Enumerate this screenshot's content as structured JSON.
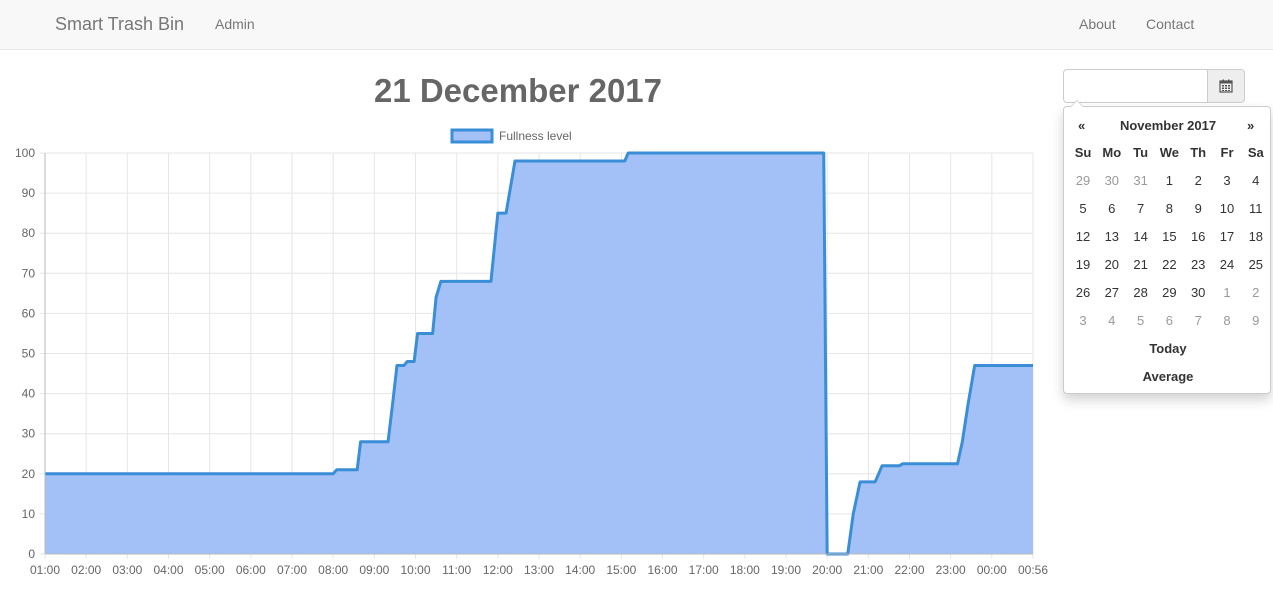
{
  "navbar": {
    "brand": "Smart Trash Bin",
    "admin_label": "Admin",
    "about_label": "About",
    "contact_label": "Contact"
  },
  "page_title": "21 December 2017",
  "datepicker": {
    "input_value": "",
    "icon": "calendar-icon",
    "prev_label": "«",
    "next_label": "»",
    "month_label": "November 2017",
    "dow": [
      "Su",
      "Mo",
      "Tu",
      "We",
      "Th",
      "Fr",
      "Sa"
    ],
    "weeks": [
      [
        {
          "d": "29",
          "m": true
        },
        {
          "d": "30",
          "m": true
        },
        {
          "d": "31",
          "m": true
        },
        {
          "d": "1"
        },
        {
          "d": "2"
        },
        {
          "d": "3"
        },
        {
          "d": "4"
        }
      ],
      [
        {
          "d": "5"
        },
        {
          "d": "6"
        },
        {
          "d": "7"
        },
        {
          "d": "8"
        },
        {
          "d": "9"
        },
        {
          "d": "10"
        },
        {
          "d": "11"
        }
      ],
      [
        {
          "d": "12"
        },
        {
          "d": "13"
        },
        {
          "d": "14"
        },
        {
          "d": "15"
        },
        {
          "d": "16"
        },
        {
          "d": "17"
        },
        {
          "d": "18"
        }
      ],
      [
        {
          "d": "19"
        },
        {
          "d": "20"
        },
        {
          "d": "21"
        },
        {
          "d": "22"
        },
        {
          "d": "23"
        },
        {
          "d": "24"
        },
        {
          "d": "25"
        }
      ],
      [
        {
          "d": "26"
        },
        {
          "d": "27"
        },
        {
          "d": "28"
        },
        {
          "d": "29"
        },
        {
          "d": "30"
        },
        {
          "d": "1",
          "m": true
        },
        {
          "d": "2",
          "m": true
        }
      ],
      [
        {
          "d": "3",
          "m": true
        },
        {
          "d": "4",
          "m": true
        },
        {
          "d": "5",
          "m": true
        },
        {
          "d": "6",
          "m": true
        },
        {
          "d": "7",
          "m": true
        },
        {
          "d": "8",
          "m": true
        },
        {
          "d": "9",
          "m": true
        }
      ]
    ],
    "today_label": "Today",
    "average_label": "Average"
  },
  "chart_data": {
    "type": "area",
    "title": "",
    "xlabel": "",
    "ylabel": "",
    "ylim": [
      0,
      100
    ],
    "y_ticks": [
      0,
      10,
      20,
      30,
      40,
      50,
      60,
      70,
      80,
      90,
      100
    ],
    "x_ticks": [
      "01:00",
      "02:00",
      "03:00",
      "04:00",
      "05:00",
      "06:00",
      "07:00",
      "08:00",
      "09:00",
      "10:00",
      "11:00",
      "12:00",
      "13:00",
      "14:00",
      "15:00",
      "16:00",
      "17:00",
      "18:00",
      "19:00",
      "20:00",
      "21:00",
      "22:00",
      "23:00",
      "00:00",
      "00:56"
    ],
    "grid": true,
    "legend_position": "top",
    "series": [
      {
        "name": "Fullness level",
        "fill_color": "#a3c1f6",
        "line_color": "#3a8ed6",
        "points": [
          {
            "x": "01:00",
            "y": 20
          },
          {
            "x": "08:00",
            "y": 20
          },
          {
            "x": "08:05",
            "y": 21
          },
          {
            "x": "08:35",
            "y": 21
          },
          {
            "x": "08:40",
            "y": 28
          },
          {
            "x": "09:20",
            "y": 28
          },
          {
            "x": "09:27",
            "y": 38
          },
          {
            "x": "09:33",
            "y": 47
          },
          {
            "x": "09:43",
            "y": 47
          },
          {
            "x": "09:48",
            "y": 48
          },
          {
            "x": "09:58",
            "y": 48
          },
          {
            "x": "10:03",
            "y": 55
          },
          {
            "x": "10:25",
            "y": 55
          },
          {
            "x": "10:30",
            "y": 64
          },
          {
            "x": "10:37",
            "y": 68
          },
          {
            "x": "11:50",
            "y": 68
          },
          {
            "x": "12:00",
            "y": 85
          },
          {
            "x": "12:12",
            "y": 85
          },
          {
            "x": "12:25",
            "y": 98
          },
          {
            "x": "15:05",
            "y": 98
          },
          {
            "x": "15:10",
            "y": 100
          },
          {
            "x": "19:55",
            "y": 100
          },
          {
            "x": "20:00",
            "y": 0
          },
          {
            "x": "20:30",
            "y": 0
          },
          {
            "x": "20:38",
            "y": 10
          },
          {
            "x": "20:48",
            "y": 18
          },
          {
            "x": "21:10",
            "y": 18
          },
          {
            "x": "21:20",
            "y": 22
          },
          {
            "x": "21:45",
            "y": 22
          },
          {
            "x": "21:50",
            "y": 22.5
          },
          {
            "x": "23:10",
            "y": 22.5
          },
          {
            "x": "23:17",
            "y": 28
          },
          {
            "x": "23:25",
            "y": 37
          },
          {
            "x": "23:35",
            "y": 47
          },
          {
            "x": "00:56",
            "y": 47
          }
        ]
      }
    ]
  }
}
